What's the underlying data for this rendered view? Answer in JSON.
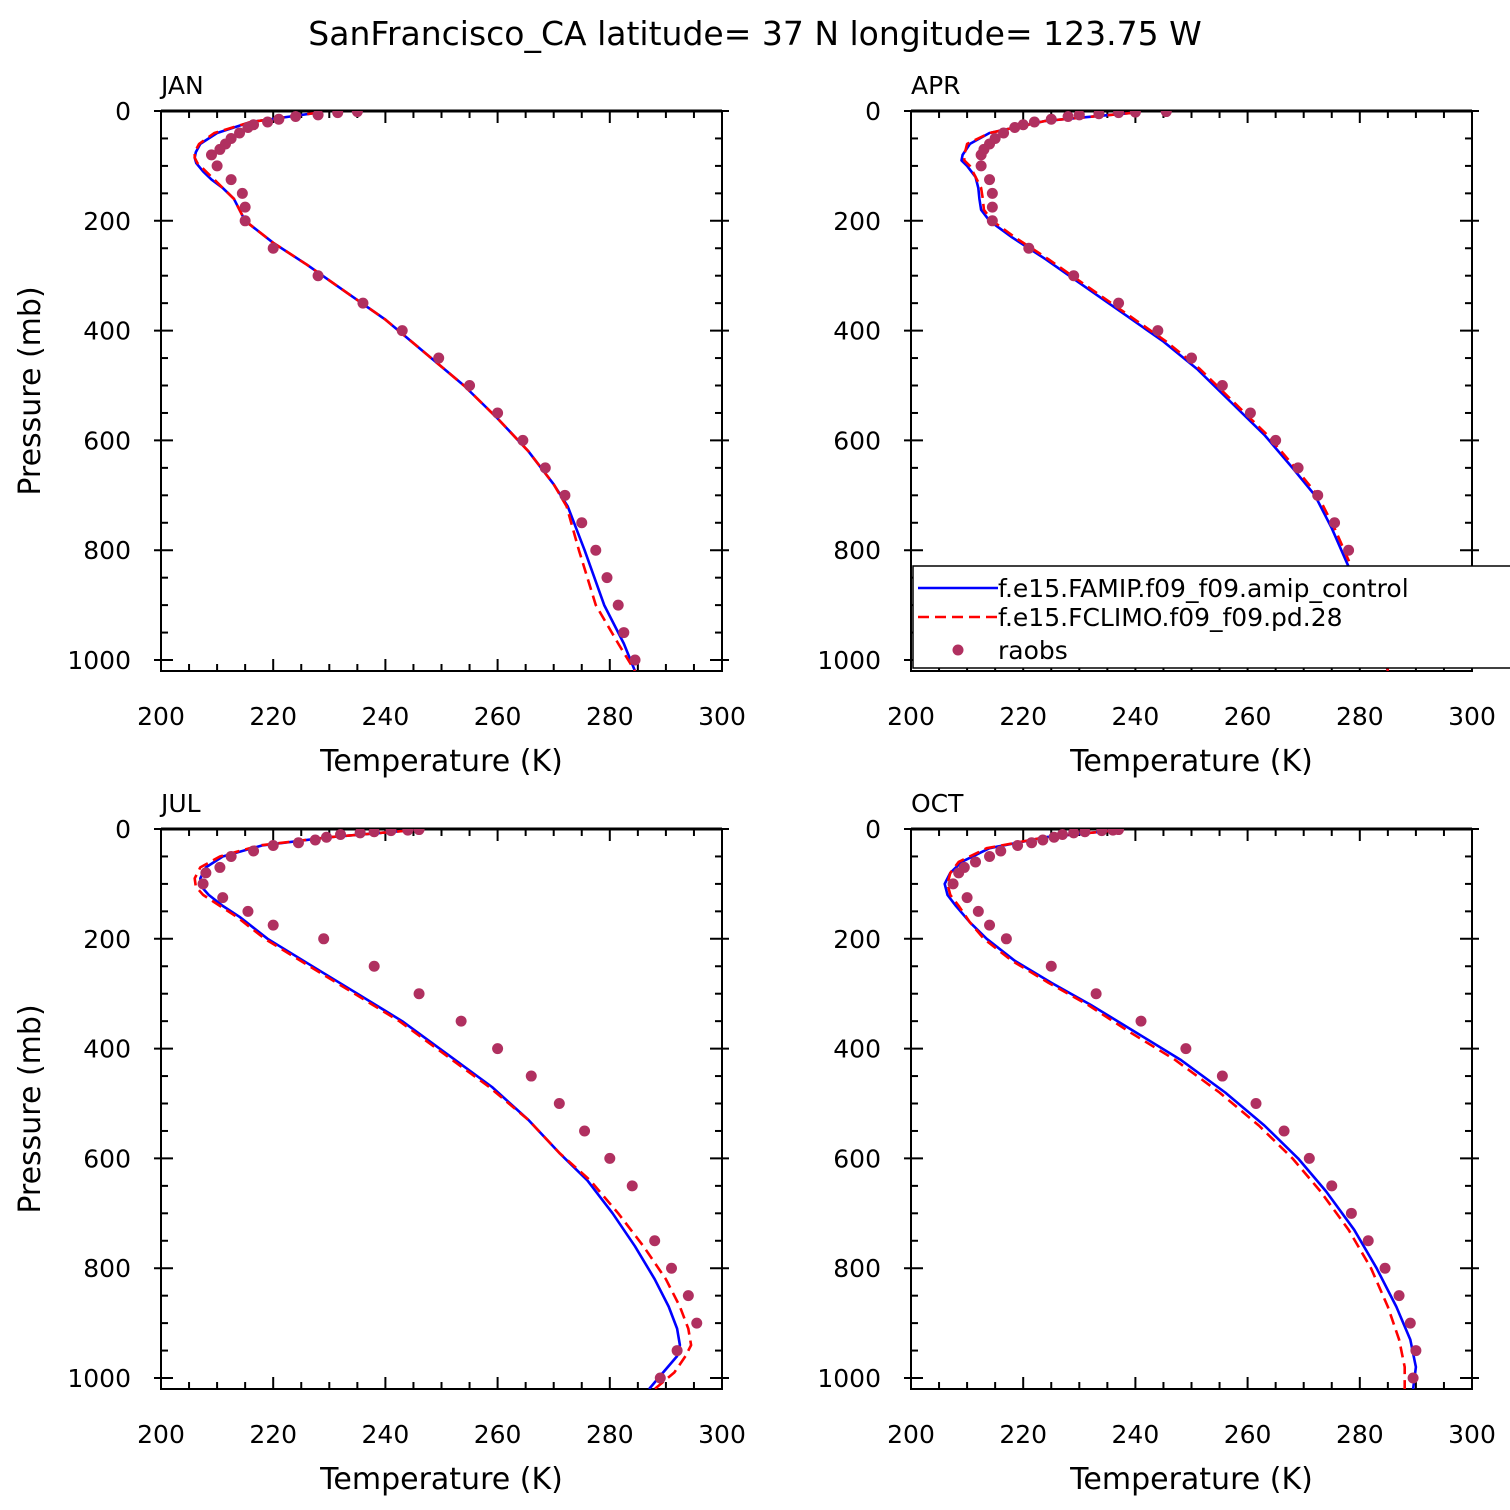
{
  "title": "SanFrancisco_CA  latitude= 37 N longitude= 123.75 W",
  "colors": {
    "model_a": "#0000ff",
    "model_b": "#ff0000",
    "obs": "#b03060",
    "axis": "#000000",
    "background": "#ffffff"
  },
  "chart_data": [
    {
      "type": "line",
      "panel": "JAN",
      "xlabel": "Temperature (K)",
      "ylabel": "Pressure (mb)",
      "xlim": [
        200,
        300
      ],
      "ylim": [
        1020,
        0
      ],
      "xticks": [
        200,
        220,
        240,
        260,
        280,
        300
      ],
      "yticks": [
        0,
        200,
        400,
        600,
        800,
        1000
      ],
      "grid": false,
      "legend": false,
      "series": [
        {
          "name": "f.e15.FAMIP.f09_f09.amip_control",
          "x": [
            228,
            216,
            210,
            207,
            206.2,
            206,
            206.3,
            207.5,
            209,
            211,
            213,
            215,
            220,
            226,
            233,
            240,
            247,
            254,
            260,
            265.5,
            270,
            272.5,
            275.5,
            279,
            282.5,
            284.5
          ],
          "y": [
            3,
            20,
            40,
            60,
            75,
            85,
            95,
            110,
            125,
            140,
            160,
            200,
            240,
            280,
            330,
            380,
            440,
            500,
            560,
            620,
            680,
            720,
            800,
            900,
            970,
            1020
          ]
        },
        {
          "name": "f.e15.FCLIMO.f09_f09.pd.28",
          "x": [
            228,
            216,
            209.5,
            206.8,
            206,
            206,
            206.5,
            208,
            209.5,
            211,
            213,
            215,
            220,
            226,
            233,
            240,
            247,
            254,
            260,
            265.5,
            270,
            272.3,
            274.5,
            277.5,
            281.5,
            284.5
          ],
          "y": [
            3,
            20,
            40,
            60,
            75,
            85,
            95,
            110,
            125,
            140,
            160,
            200,
            240,
            280,
            330,
            380,
            440,
            500,
            560,
            620,
            680,
            720,
            800,
            900,
            970,
            1020
          ]
        },
        {
          "name": "raobs",
          "marker": "dot",
          "x": [
            235,
            231.5,
            228,
            224,
            221,
            219,
            216.5,
            215.5,
            214,
            212.5,
            211.5,
            210.5,
            209,
            210,
            212.5,
            214.5,
            215,
            215,
            220,
            228,
            236,
            243,
            249.5,
            255,
            260,
            264.5,
            268.5,
            272,
            275,
            277.5,
            279.5,
            281.5,
            282.5,
            284.5
          ],
          "y": [
            1,
            3,
            7,
            10,
            15,
            20,
            25,
            30,
            40,
            50,
            60,
            70,
            80,
            100,
            125,
            150,
            175,
            200,
            250,
            300,
            350,
            400,
            450,
            500,
            550,
            600,
            650,
            700,
            750,
            800,
            850,
            900,
            950,
            1000
          ]
        }
      ]
    },
    {
      "type": "line",
      "panel": "APR",
      "xlabel": "Temperature (K)",
      "ylabel": "",
      "xlim": [
        200,
        300
      ],
      "ylim": [
        1020,
        0
      ],
      "xticks": [
        200,
        220,
        240,
        260,
        280,
        300
      ],
      "yticks": [
        0,
        200,
        400,
        600,
        800,
        1000
      ],
      "grid": false,
      "legend": true,
      "legend_entries": [
        "f.e15.FAMIP.f09_f09.amip_control",
        "f.e15.FCLIMO.f09_f09.pd.28",
        "raobs"
      ],
      "series": [
        {
          "name": "f.e15.FAMIP.f09_f09.amip_control",
          "x": [
            240,
            224,
            214,
            210.5,
            209.2,
            209,
            210,
            211.5,
            212,
            212.2,
            212.5,
            214,
            218,
            224,
            231,
            238,
            245,
            251,
            257,
            263,
            268,
            272,
            275,
            278,
            281,
            283.5,
            285
          ],
          "y": [
            3,
            18,
            40,
            60,
            80,
            90,
            100,
            120,
            140,
            160,
            180,
            200,
            230,
            270,
            320,
            370,
            420,
            470,
            530,
            590,
            650,
            700,
            760,
            830,
            900,
            960,
            1020
          ]
        },
        {
          "name": "f.e15.FCLIMO.f09_f09.pd.28",
          "x": [
            240,
            224,
            214,
            210,
            209.5,
            209.5,
            210.5,
            211.5,
            212.5,
            212.8,
            213,
            214.5,
            218.5,
            224.5,
            231.5,
            238.5,
            245.5,
            251.5,
            257.5,
            263.5,
            268.5,
            272.5,
            275.5,
            278.5,
            281.5,
            284,
            285
          ],
          "y": [
            3,
            18,
            40,
            60,
            80,
            90,
            100,
            120,
            140,
            160,
            180,
            200,
            230,
            270,
            320,
            370,
            420,
            470,
            530,
            590,
            650,
            700,
            760,
            830,
            900,
            960,
            1020
          ]
        },
        {
          "name": "raobs",
          "marker": "dot",
          "x": [
            245.5,
            240,
            237,
            233.5,
            230,
            228,
            225,
            222,
            220,
            218.5,
            216.5,
            215,
            214,
            213,
            212.5,
            212.5,
            214,
            214.5,
            214.5,
            214.5,
            221,
            229,
            237,
            244,
            250,
            255.5,
            260.5,
            265,
            269,
            272.5,
            275.5,
            278,
            280.5,
            283.5,
            284.5,
            285.5
          ],
          "y": [
            1,
            2,
            3,
            5,
            7,
            10,
            15,
            20,
            25,
            30,
            40,
            50,
            60,
            70,
            80,
            100,
            125,
            150,
            175,
            200,
            250,
            300,
            350,
            400,
            450,
            500,
            550,
            600,
            650,
            700,
            750,
            800,
            850,
            900,
            950,
            1000
          ]
        }
      ]
    },
    {
      "type": "line",
      "panel": "JUL",
      "xlabel": "Temperature (K)",
      "ylabel": "Pressure (mb)",
      "xlim": [
        200,
        300
      ],
      "ylim": [
        1020,
        0
      ],
      "xticks": [
        200,
        220,
        240,
        260,
        280,
        300
      ],
      "yticks": [
        0,
        200,
        400,
        600,
        800,
        1000
      ],
      "grid": false,
      "legend": false,
      "series": [
        {
          "name": "f.e15.FAMIP.f09_f09.amip_control",
          "x": [
            244,
            230,
            218,
            211,
            208,
            207,
            207.2,
            208.5,
            211,
            214,
            219,
            227,
            235,
            243,
            251,
            259,
            265.5,
            271,
            276,
            280.5,
            284.5,
            288,
            290.5,
            292,
            292.5,
            292,
            289.5,
            287
          ],
          "y": [
            3,
            15,
            30,
            50,
            70,
            90,
            105,
            120,
            140,
            160,
            200,
            250,
            300,
            350,
            410,
            470,
            530,
            590,
            640,
            700,
            760,
            820,
            870,
            910,
            940,
            960,
            990,
            1020
          ]
        },
        {
          "name": "f.e15.FCLIMO.f09_f09.pd.28",
          "x": [
            244,
            230,
            217.5,
            210.5,
            207,
            206,
            206.2,
            207.5,
            210.5,
            213.5,
            218.5,
            226.5,
            234.5,
            242.5,
            250.5,
            258.5,
            265.5,
            271,
            276.5,
            281.5,
            286,
            290,
            292.5,
            294,
            294.5,
            293.5,
            291.5,
            288
          ],
          "y": [
            3,
            15,
            30,
            50,
            70,
            90,
            105,
            120,
            140,
            160,
            200,
            250,
            300,
            350,
            410,
            470,
            530,
            590,
            640,
            700,
            760,
            820,
            870,
            910,
            940,
            960,
            990,
            1020
          ]
        },
        {
          "name": "raobs",
          "marker": "dot",
          "x": [
            246,
            244,
            241,
            238,
            235.5,
            232,
            229.5,
            227.5,
            224.5,
            220,
            216.5,
            212.5,
            210.5,
            208,
            207.5,
            211,
            215.5,
            220,
            229,
            238,
            246,
            253.5,
            260,
            266,
            271,
            275.5,
            280,
            284,
            288,
            291,
            294,
            295.5,
            292,
            289
          ],
          "y": [
            1,
            2,
            3,
            5,
            7,
            10,
            15,
            20,
            25,
            30,
            40,
            50,
            70,
            80,
            100,
            125,
            150,
            175,
            200,
            250,
            300,
            350,
            400,
            450,
            500,
            550,
            600,
            650,
            750,
            800,
            850,
            900,
            950,
            1000
          ]
        }
      ]
    },
    {
      "type": "line",
      "panel": "OCT",
      "xlabel": "Temperature (K)",
      "ylabel": "",
      "xlim": [
        200,
        300
      ],
      "ylim": [
        1020,
        0
      ],
      "xticks": [
        200,
        220,
        240,
        260,
        280,
        300
      ],
      "yticks": [
        0,
        200,
        400,
        600,
        800,
        1000
      ],
      "grid": false,
      "legend": false,
      "series": [
        {
          "name": "f.e15.FAMIP.f09_f09.amip_control",
          "x": [
            236,
            224,
            214,
            209,
            207,
            206,
            206.5,
            208,
            210.5,
            213.5,
            218.5,
            225,
            232,
            240,
            248,
            256,
            263,
            269,
            274,
            279,
            283,
            286.5,
            289,
            290,
            289.5
          ],
          "y": [
            3,
            15,
            35,
            60,
            80,
            100,
            120,
            140,
            170,
            200,
            240,
            280,
            320,
            370,
            420,
            480,
            540,
            600,
            660,
            730,
            800,
            870,
            930,
            980,
            1020
          ]
        },
        {
          "name": "f.e15.FCLIMO.f09_f09.pd.28",
          "x": [
            236,
            224,
            213.5,
            208.5,
            207,
            206.5,
            207,
            208.5,
            210.5,
            213,
            218,
            224.5,
            231.5,
            239,
            247,
            255,
            262,
            268,
            273,
            278,
            282,
            285,
            287,
            288,
            288
          ],
          "y": [
            3,
            15,
            35,
            60,
            80,
            100,
            120,
            140,
            170,
            200,
            240,
            280,
            320,
            370,
            420,
            480,
            540,
            600,
            660,
            730,
            800,
            870,
            930,
            980,
            1020
          ]
        },
        {
          "name": "raobs",
          "marker": "dot",
          "x": [
            237,
            236,
            234,
            231,
            229,
            227,
            225.5,
            223.5,
            221.5,
            219,
            216,
            214,
            211.5,
            209.5,
            208.5,
            207.5,
            210,
            212,
            214,
            217,
            225,
            233,
            241,
            249,
            255.5,
            261.5,
            266.5,
            271,
            275,
            278.5,
            281.5,
            284.5,
            287,
            289,
            290,
            289.5
          ],
          "y": [
            1,
            2,
            3,
            5,
            7,
            10,
            15,
            20,
            25,
            30,
            40,
            50,
            60,
            70,
            80,
            100,
            125,
            150,
            175,
            200,
            250,
            300,
            350,
            400,
            450,
            500,
            550,
            600,
            650,
            700,
            750,
            800,
            850,
            900,
            950,
            1000
          ]
        }
      ]
    }
  ]
}
